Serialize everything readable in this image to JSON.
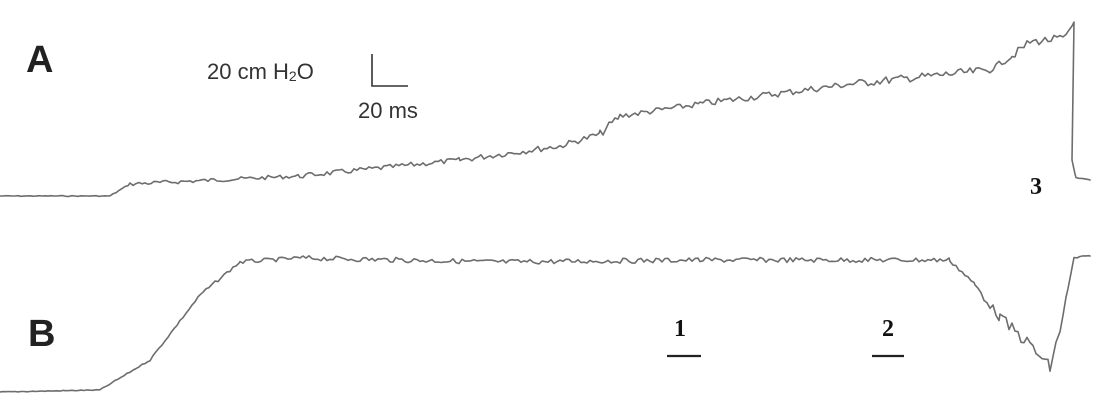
{
  "panels": {
    "a": {
      "label": "A"
    },
    "b": {
      "label": "B"
    }
  },
  "scale_bar": {
    "pressure_value": "20 cm H",
    "pressure_subscript": "2",
    "pressure_suffix": "O",
    "time_label": "20 ms"
  },
  "markers": {
    "m1": {
      "label": "1"
    },
    "m2": {
      "label": "2"
    },
    "m3": {
      "label": "3"
    }
  },
  "colors": {
    "trace": "#6d6d6d",
    "text": "#222222",
    "background": "#ffffff"
  }
}
